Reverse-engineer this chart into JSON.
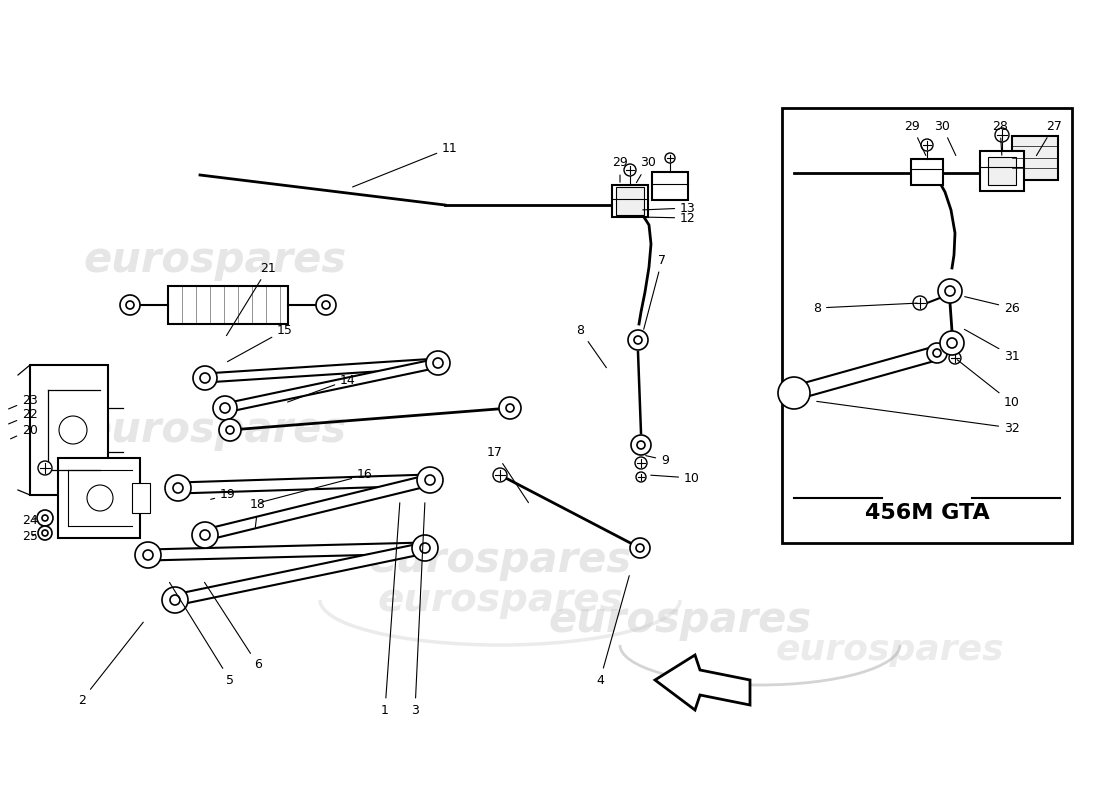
{
  "bg_color": "#ffffff",
  "line_color": "#000000",
  "watermark_text": "eurospares",
  "watermark_color": "#c8c8c8",
  "box_label": "456M GTA",
  "inset_border_color": "#000000",
  "figsize": [
    11.0,
    8.0
  ],
  "dpi": 100
}
